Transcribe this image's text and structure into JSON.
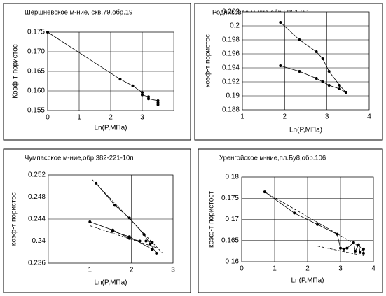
{
  "chart_data": [
    {
      "type": "line",
      "title": "Шершневское м-ние, скв.79,обр.19",
      "x_label": "Ln(P,МПа)",
      "y_label": "Коэф-т пористос",
      "xlim": [
        0,
        4
      ],
      "xticks": [
        0,
        1,
        2,
        3
      ],
      "ylim": [
        0.155,
        0.175
      ],
      "yticks": [
        {
          "value": 0.155,
          "label": "0.155"
        },
        {
          "value": 0.16,
          "label": "0.160"
        },
        {
          "value": 0.165,
          "label": "0.165"
        },
        {
          "value": 0.17,
          "label": "0.170"
        },
        0.175
      ],
      "grid": true,
      "series": [
        {
          "color": "#000000",
          "marker": true,
          "x": [
            0,
            2.3,
            2.7,
            3.0,
            3.0,
            3.2,
            3.2,
            3.5,
            3.5,
            3.5
          ],
          "values": [
            0.175,
            0.163,
            0.1613,
            0.1596,
            0.159,
            0.1585,
            0.158,
            0.1575,
            0.157,
            0.1565
          ]
        }
      ]
    },
    {
      "type": "line",
      "title": "Родниковое м-ние,обр.5961-96",
      "x_label": "Ln(P,МПа)",
      "y_label": "коэф-т пористос",
      "xlim": [
        1,
        4
      ],
      "xticks": [
        1,
        2,
        3,
        4
      ],
      "ylim": [
        0.188,
        0.202
      ],
      "yticks": [
        0.188,
        0.19,
        0.192,
        0.194,
        0.196,
        0.198,
        0.2,
        0.202
      ],
      "grid": true,
      "series": [
        {
          "color": "#000000",
          "marker": true,
          "x": [
            1.9,
            2.35,
            2.75,
            2.9,
            3.05,
            3.3,
            3.45
          ],
          "values": [
            0.2005,
            0.198,
            0.1963,
            0.1953,
            0.1935,
            0.1915,
            0.1905
          ]
        },
        {
          "color": "#000000",
          "marker": true,
          "x": [
            1.9,
            2.35,
            2.75,
            2.9,
            3.05,
            3.3,
            3.45
          ],
          "values": [
            0.1943,
            0.1935,
            0.1925,
            0.192,
            0.1915,
            0.191,
            0.1905
          ]
        }
      ]
    },
    {
      "type": "line",
      "title": "Чумпасское м-ние,обр.382-221-10п",
      "x_label": "Ln(P,МПа)",
      "y_label": "коэф-т пористос",
      "xlim": [
        0,
        3
      ],
      "xticks": [
        1,
        2,
        3
      ],
      "ylim": [
        0.236,
        0.252
      ],
      "yticks": [
        0.236,
        0.24,
        0.244,
        0.248,
        0.252
      ],
      "grid": true,
      "series": [
        {
          "color": "#000000",
          "marker": true,
          "x": [
            1.15,
            1.6,
            1.95,
            2.3,
            2.45,
            2.6
          ],
          "values": [
            0.2505,
            0.2465,
            0.2442,
            0.2412,
            0.2395,
            0.2378
          ]
        },
        {
          "color": "#000000",
          "marker": true,
          "x": [
            1.0,
            1.55,
            1.95,
            2.2,
            2.35,
            2.5
          ],
          "values": [
            0.2435,
            0.242,
            0.2405,
            0.24,
            0.24,
            0.2398
          ]
        },
        {
          "color": "#000000",
          "marker": true,
          "x": [
            1.55,
            1.95,
            2.5
          ],
          "values": [
            0.2418,
            0.2408,
            0.2385
          ]
        },
        {
          "color": "#000000",
          "dash": true,
          "x": [
            1.05,
            2.75
          ],
          "values": [
            0.2512,
            0.2378
          ]
        },
        {
          "color": "#000000",
          "dash": true,
          "x": [
            1.0,
            2.6
          ],
          "values": [
            0.2428,
            0.2388
          ]
        }
      ]
    },
    {
      "type": "line",
      "title": "Уренгойское м-ние,пл.Бу8,обр.106",
      "x_label": "Ln(P,МПа)",
      "y_label": "коэф-т пористост",
      "xlim": [
        0,
        4
      ],
      "xticks": [
        0,
        1,
        2,
        3,
        4
      ],
      "ylim": [
        0.16,
        0.18
      ],
      "yticks": [
        0.16,
        0.165,
        0.17,
        0.175,
        0.18
      ],
      "grid": true,
      "series": [
        {
          "color": "#000000",
          "marker": true,
          "x": [
            0.7,
            1.6,
            2.3,
            2.9,
            3.0,
            3.1,
            3.2,
            3.4,
            3.45,
            3.55,
            3.6,
            3.7,
            3.7
          ],
          "values": [
            0.1765,
            0.1715,
            0.1688,
            0.1665,
            0.1632,
            0.163,
            0.1632,
            0.1645,
            0.1625,
            0.164,
            0.1622,
            0.163,
            0.162
          ]
        },
        {
          "color": "#000000",
          "dash": true,
          "x": [
            0.7,
            3.7
          ],
          "values": [
            0.1765,
            0.163
          ]
        },
        {
          "color": "#000000",
          "dash": true,
          "x": [
            2.3,
            3.7
          ],
          "values": [
            0.1637,
            0.1614
          ]
        }
      ]
    }
  ]
}
